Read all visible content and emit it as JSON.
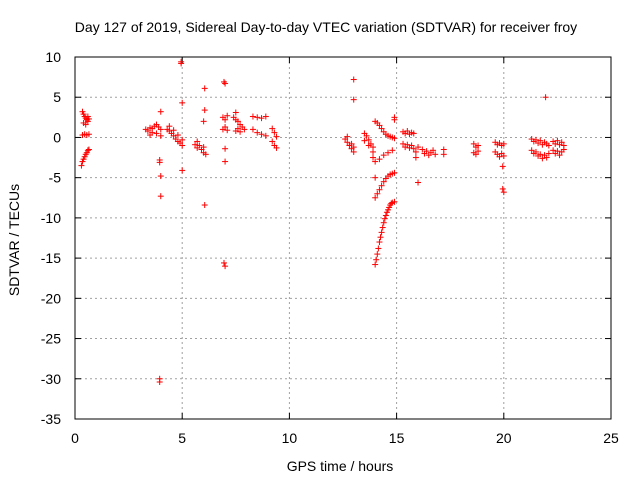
{
  "chart_data": {
    "type": "scatter",
    "title": "Day 127 of 2019, Sidereal Day-to-day VTEC variation (SDTVAR) for receiver froy",
    "xlabel": "GPS time / hours",
    "ylabel": "SDTVAR / TECUs",
    "xlim": [
      0,
      25
    ],
    "ylim": [
      -35,
      10
    ],
    "xticks": [
      0,
      5,
      10,
      15,
      20,
      25
    ],
    "yticks": [
      10,
      5,
      0,
      -5,
      -10,
      -15,
      -20,
      -25,
      -30,
      -35
    ],
    "xtick_labels": [
      "0",
      "5",
      "10",
      "15",
      "20",
      "25"
    ],
    "ytick_labels": [
      "10",
      "5",
      "0",
      "-5",
      "-10",
      "-15",
      "-20",
      "-25",
      "-30",
      "-35"
    ],
    "grid": true,
    "marker": "+",
    "color": "#ff0000",
    "series": [
      {
        "name": "SDTVAR",
        "points": [
          [
            0.35,
            3.2
          ],
          [
            0.4,
            2.9
          ],
          [
            0.45,
            2.6
          ],
          [
            0.5,
            2.4
          ],
          [
            0.55,
            2.2
          ],
          [
            0.6,
            2.0
          ],
          [
            0.65,
            2.3
          ],
          [
            0.4,
            1.8
          ],
          [
            0.5,
            1.6
          ],
          [
            0.6,
            2.6
          ],
          [
            0.35,
            0.3
          ],
          [
            0.45,
            0.4
          ],
          [
            0.55,
            0.3
          ],
          [
            0.65,
            0.4
          ],
          [
            0.3,
            -3.5
          ],
          [
            0.35,
            -3.0
          ],
          [
            0.4,
            -2.7
          ],
          [
            0.45,
            -2.4
          ],
          [
            0.5,
            -2.1
          ],
          [
            0.55,
            -1.9
          ],
          [
            0.6,
            -1.6
          ],
          [
            0.65,
            -1.5
          ],
          [
            3.3,
            1.0
          ],
          [
            3.4,
            0.8
          ],
          [
            3.5,
            1.2
          ],
          [
            3.6,
            0.6
          ],
          [
            3.7,
            1.4
          ],
          [
            3.8,
            1.6
          ],
          [
            3.9,
            1.3
          ],
          [
            4.0,
            1.0
          ],
          [
            3.5,
            0.3
          ],
          [
            3.8,
            0.5
          ],
          [
            4.0,
            0.2
          ],
          [
            3.6,
            1.1
          ],
          [
            4.0,
            3.2
          ],
          [
            3.95,
            -2.8
          ],
          [
            3.95,
            -3.1
          ],
          [
            4.0,
            -4.8
          ],
          [
            4.0,
            -7.3
          ],
          [
            3.95,
            -30.0
          ],
          [
            3.95,
            -30.4
          ],
          [
            4.3,
            1.0
          ],
          [
            4.4,
            0.8
          ],
          [
            4.5,
            0.5
          ],
          [
            4.6,
            0.2
          ],
          [
            4.7,
            -0.2
          ],
          [
            4.8,
            -0.5
          ],
          [
            4.9,
            -0.7
          ],
          [
            5.0,
            -1.0
          ],
          [
            4.4,
            1.4
          ],
          [
            4.6,
            0.9
          ],
          [
            4.8,
            0.3
          ],
          [
            5.0,
            -0.3
          ],
          [
            4.95,
            9.4
          ],
          [
            4.95,
            9.2
          ],
          [
            5.0,
            4.3
          ],
          [
            5.0,
            -4.1
          ],
          [
            5.6,
            -0.9
          ],
          [
            5.7,
            -1.3
          ],
          [
            5.8,
            -1.0
          ],
          [
            5.9,
            -1.5
          ],
          [
            6.0,
            -1.9
          ],
          [
            6.1,
            -2.1
          ],
          [
            5.7,
            -0.5
          ],
          [
            6.0,
            -1.2
          ],
          [
            6.05,
            6.1
          ],
          [
            6.05,
            3.4
          ],
          [
            6.0,
            2.0
          ],
          [
            6.05,
            -8.4
          ],
          [
            6.9,
            2.5
          ],
          [
            7.0,
            2.2
          ],
          [
            7.1,
            2.7
          ],
          [
            6.9,
            1.0
          ],
          [
            7.0,
            1.3
          ],
          [
            7.1,
            0.9
          ],
          [
            6.95,
            6.9
          ],
          [
            7.0,
            6.7
          ],
          [
            7.0,
            -1.4
          ],
          [
            7.0,
            -3.0
          ],
          [
            6.95,
            -15.6
          ],
          [
            7.0,
            -16.0
          ],
          [
            7.4,
            2.5
          ],
          [
            7.5,
            2.2
          ],
          [
            7.6,
            2.0
          ],
          [
            7.7,
            1.6
          ],
          [
            7.8,
            1.3
          ],
          [
            7.9,
            1.0
          ],
          [
            7.5,
            0.8
          ],
          [
            7.6,
            1.1
          ],
          [
            7.7,
            0.7
          ],
          [
            7.5,
            3.1
          ],
          [
            8.3,
            2.6
          ],
          [
            8.5,
            2.5
          ],
          [
            8.7,
            2.4
          ],
          [
            8.9,
            2.6
          ],
          [
            8.3,
            1.0
          ],
          [
            8.5,
            0.6
          ],
          [
            8.7,
            0.4
          ],
          [
            8.9,
            0.2
          ],
          [
            9.2,
            1.1
          ],
          [
            9.3,
            0.6
          ],
          [
            9.4,
            0.1
          ],
          [
            9.2,
            -0.5
          ],
          [
            9.3,
            -1.0
          ],
          [
            9.4,
            -1.3
          ],
          [
            12.6,
            -0.2
          ],
          [
            12.7,
            -0.6
          ],
          [
            12.8,
            -1.0
          ],
          [
            12.9,
            -1.4
          ],
          [
            13.0,
            -1.8
          ],
          [
            12.7,
            0.1
          ],
          [
            12.9,
            -0.8
          ],
          [
            13.0,
            -1.2
          ],
          [
            13.0,
            7.2
          ],
          [
            13.0,
            4.7
          ],
          [
            13.5,
            0.5
          ],
          [
            13.6,
            0.2
          ],
          [
            13.7,
            -0.3
          ],
          [
            13.8,
            -0.8
          ],
          [
            13.9,
            -1.2
          ],
          [
            13.5,
            -0.4
          ],
          [
            13.7,
            -1.0
          ],
          [
            13.9,
            -1.8
          ],
          [
            14.0,
            2.0
          ],
          [
            14.1,
            1.8
          ],
          [
            14.2,
            1.5
          ],
          [
            14.3,
            1.1
          ],
          [
            14.4,
            0.7
          ],
          [
            14.5,
            0.4
          ],
          [
            14.6,
            0.2
          ],
          [
            14.7,
            0.1
          ],
          [
            14.8,
            0.0
          ],
          [
            14.9,
            -0.1
          ],
          [
            13.9,
            -2.5
          ],
          [
            14.0,
            -3.0
          ],
          [
            14.2,
            -2.7
          ],
          [
            14.4,
            -2.2
          ],
          [
            14.6,
            -1.9
          ],
          [
            14.8,
            -1.6
          ],
          [
            14.0,
            -5.0
          ],
          [
            14.9,
            2.5
          ],
          [
            14.9,
            2.2
          ],
          [
            14.0,
            -7.5
          ],
          [
            14.1,
            -7.0
          ],
          [
            14.2,
            -6.5
          ],
          [
            14.3,
            -6.0
          ],
          [
            14.4,
            -5.5
          ],
          [
            14.5,
            -5.1
          ],
          [
            14.6,
            -4.8
          ],
          [
            14.7,
            -4.6
          ],
          [
            14.8,
            -4.5
          ],
          [
            14.9,
            -4.4
          ],
          [
            14.0,
            -15.8
          ],
          [
            14.05,
            -15.2
          ],
          [
            14.1,
            -14.5
          ],
          [
            14.15,
            -13.8
          ],
          [
            14.2,
            -13.0
          ],
          [
            14.25,
            -12.4
          ],
          [
            14.3,
            -11.8
          ],
          [
            14.35,
            -11.2
          ],
          [
            14.4,
            -10.6
          ],
          [
            14.45,
            -10.1
          ],
          [
            14.5,
            -9.7
          ],
          [
            14.55,
            -9.3
          ],
          [
            14.6,
            -9.0
          ],
          [
            14.65,
            -8.7
          ],
          [
            14.7,
            -8.4
          ],
          [
            14.75,
            -8.2
          ],
          [
            14.8,
            -8.1
          ],
          [
            14.9,
            -8.0
          ],
          [
            15.3,
            0.7
          ],
          [
            15.4,
            0.5
          ],
          [
            15.5,
            0.8
          ],
          [
            15.6,
            0.4
          ],
          [
            15.7,
            0.6
          ],
          [
            15.8,
            0.5
          ],
          [
            15.3,
            -0.8
          ],
          [
            15.4,
            -1.2
          ],
          [
            15.5,
            -0.9
          ],
          [
            15.6,
            -1.3
          ],
          [
            15.7,
            -1.0
          ],
          [
            15.8,
            -1.4
          ],
          [
            15.9,
            -1.8
          ],
          [
            16.0,
            -1.2
          ],
          [
            15.9,
            -2.5
          ],
          [
            16.0,
            -5.6
          ],
          [
            16.2,
            -1.5
          ],
          [
            16.3,
            -2.0
          ],
          [
            16.4,
            -1.7
          ],
          [
            16.5,
            -2.2
          ],
          [
            16.6,
            -1.9
          ],
          [
            16.7,
            -1.6
          ],
          [
            16.8,
            -2.1
          ],
          [
            17.2,
            -1.5
          ],
          [
            17.2,
            -2.1
          ],
          [
            18.6,
            -0.8
          ],
          [
            18.7,
            -1.2
          ],
          [
            18.8,
            -1.0
          ],
          [
            18.6,
            -1.9
          ],
          [
            18.7,
            -2.1
          ],
          [
            18.8,
            -1.7
          ],
          [
            19.6,
            -0.6
          ],
          [
            19.7,
            -0.9
          ],
          [
            19.8,
            -0.7
          ],
          [
            19.9,
            -1.0
          ],
          [
            20.0,
            -0.8
          ],
          [
            19.6,
            -1.8
          ],
          [
            19.7,
            -2.1
          ],
          [
            19.8,
            -2.4
          ],
          [
            19.9,
            -2.0
          ],
          [
            20.0,
            -2.3
          ],
          [
            19.95,
            -3.6
          ],
          [
            19.95,
            -6.4
          ],
          [
            20.0,
            -6.8
          ],
          [
            21.3,
            -0.2
          ],
          [
            21.4,
            -0.5
          ],
          [
            21.5,
            -0.3
          ],
          [
            21.6,
            -0.7
          ],
          [
            21.7,
            -0.4
          ],
          [
            21.8,
            -0.9
          ],
          [
            21.9,
            -0.6
          ],
          [
            22.0,
            -0.8
          ],
          [
            22.1,
            -1.0
          ],
          [
            21.3,
            -1.6
          ],
          [
            21.4,
            -2.0
          ],
          [
            21.5,
            -1.8
          ],
          [
            21.6,
            -2.3
          ],
          [
            21.7,
            -2.1
          ],
          [
            21.8,
            -2.6
          ],
          [
            21.9,
            -2.2
          ],
          [
            22.0,
            -2.5
          ],
          [
            22.1,
            -2.0
          ],
          [
            21.95,
            5.0
          ],
          [
            22.3,
            -0.5
          ],
          [
            22.4,
            -0.8
          ],
          [
            22.5,
            -0.4
          ],
          [
            22.6,
            -0.9
          ],
          [
            22.7,
            -0.6
          ],
          [
            22.8,
            -1.0
          ],
          [
            22.3,
            -1.6
          ],
          [
            22.4,
            -2.0
          ],
          [
            22.5,
            -1.7
          ],
          [
            22.6,
            -2.2
          ],
          [
            22.7,
            -1.8
          ],
          [
            22.8,
            -1.5
          ]
        ]
      }
    ]
  }
}
